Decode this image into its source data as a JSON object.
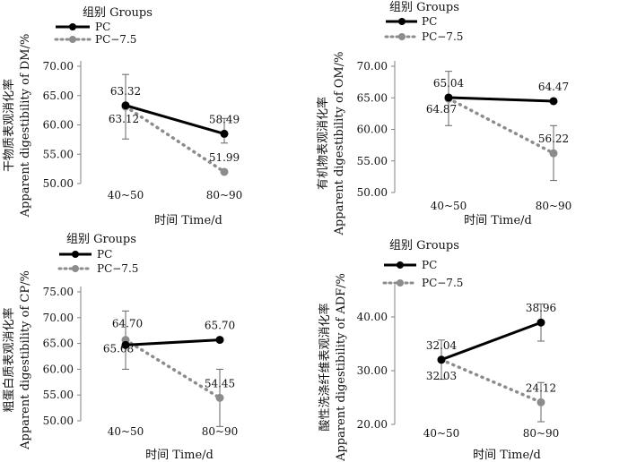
{
  "colors": {
    "pc": "#000000",
    "pc75": "#8c8c8c",
    "axis": "#808080",
    "error": "#666666"
  },
  "chart_data": [
    {
      "type": "line",
      "ylabel_cn": "干物质表观消化率",
      "ylabel_en": "Apparent digestibility of DM/%",
      "xlabel": "时间 Time/d",
      "legend_title": "组别 Groups",
      "categories": [
        "40~50",
        "80~90"
      ],
      "ylim": [
        50,
        70
      ],
      "yticks": [
        50,
        55,
        60,
        65,
        70
      ],
      "yticklabels": [
        "50.00",
        "55.00",
        "60.00",
        "65.00",
        "70.00"
      ],
      "series": [
        {
          "name": "PC",
          "style": "solid",
          "values": [
            63.32,
            58.49
          ],
          "errors": [
            [
              null,
              null
            ],
            [
              56.9,
              61.1
            ]
          ],
          "labels": [
            "63.32",
            "58.49"
          ]
        },
        {
          "name": "PC−7.5",
          "style": "dotted",
          "values": [
            63.12,
            51.99
          ],
          "errors": [
            [
              57.6,
              68.6
            ],
            [
              null,
              null
            ]
          ],
          "labels": [
            "63.12",
            "51.99"
          ]
        }
      ]
    },
    {
      "type": "line",
      "ylabel_cn": "有机物表观消化率",
      "ylabel_en": "Apparent digestibility of OM/%",
      "xlabel": "时间 Time/d",
      "legend_title": "组别 Groups",
      "categories": [
        "40~50",
        "80~90"
      ],
      "ylim": [
        50,
        70
      ],
      "yticks": [
        50,
        55,
        60,
        65,
        70
      ],
      "yticklabels": [
        "50.00",
        "55.00",
        "60.00",
        "65.00",
        "70.00"
      ],
      "series": [
        {
          "name": "PC",
          "style": "solid",
          "values": [
            65.04,
            64.47
          ],
          "errors": [
            [
              null,
              null
            ],
            [
              null,
              null
            ]
          ],
          "labels": [
            "65.04",
            "64.47"
          ]
        },
        {
          "name": "PC−7.5",
          "style": "dotted",
          "values": [
            64.87,
            56.22
          ],
          "errors": [
            [
              60.6,
              69.2
            ],
            [
              51.9,
              60.6
            ]
          ],
          "labels": [
            "64.87",
            "56.22"
          ]
        }
      ]
    },
    {
      "type": "line",
      "ylabel_cn": "粗蛋白质表观消化率",
      "ylabel_en": "Apparent digestibility of CP/%",
      "xlabel": "时间 Time/d",
      "legend_title": "组别 Groups",
      "categories": [
        "40~50",
        "80~90"
      ],
      "ylim": [
        50,
        75
      ],
      "yticks": [
        50,
        55,
        60,
        65,
        70,
        75
      ],
      "yticklabels": [
        "50.00",
        "55.00",
        "60.00",
        "65.00",
        "70.00",
        "75.00"
      ],
      "series": [
        {
          "name": "PC",
          "style": "solid",
          "values": [
            64.7,
            65.7
          ],
          "errors": [
            [
              null,
              null
            ],
            [
              null,
              null
            ]
          ],
          "labels": [
            "64.70",
            "65.70"
          ]
        },
        {
          "name": "PC−7.5",
          "style": "dotted",
          "values": [
            65.68,
            54.45
          ],
          "errors": [
            [
              60.0,
              71.3
            ],
            [
              48.9,
              60.0
            ]
          ],
          "labels": [
            "65.68",
            "54.45"
          ]
        }
      ]
    },
    {
      "type": "line",
      "ylabel_cn": "酸性洗涤纤维表观消化率",
      "ylabel_en": "Apparent digestibility of ADF/%",
      "xlabel": "时间 Time/d",
      "legend_title": "组别 Groups",
      "categories": [
        "40~50",
        "80~90"
      ],
      "ylim": [
        20,
        45
      ],
      "yticks": [
        20,
        30,
        40
      ],
      "yticklabels": [
        "20.00",
        "30.00",
        "40.00"
      ],
      "series": [
        {
          "name": "PC",
          "style": "solid",
          "values": [
            32.04,
            38.96
          ],
          "errors": [
            [
              null,
              null
            ],
            [
              35.5,
              42.4
            ]
          ],
          "labels": [
            "32.04",
            "38.96"
          ]
        },
        {
          "name": "PC−7.5",
          "style": "dotted",
          "values": [
            32.03,
            24.12
          ],
          "errors": [
            [
              28.4,
              35.7
            ],
            [
              20.5,
              27.8
            ]
          ],
          "labels": [
            "32.03",
            "24.12"
          ]
        }
      ]
    }
  ]
}
